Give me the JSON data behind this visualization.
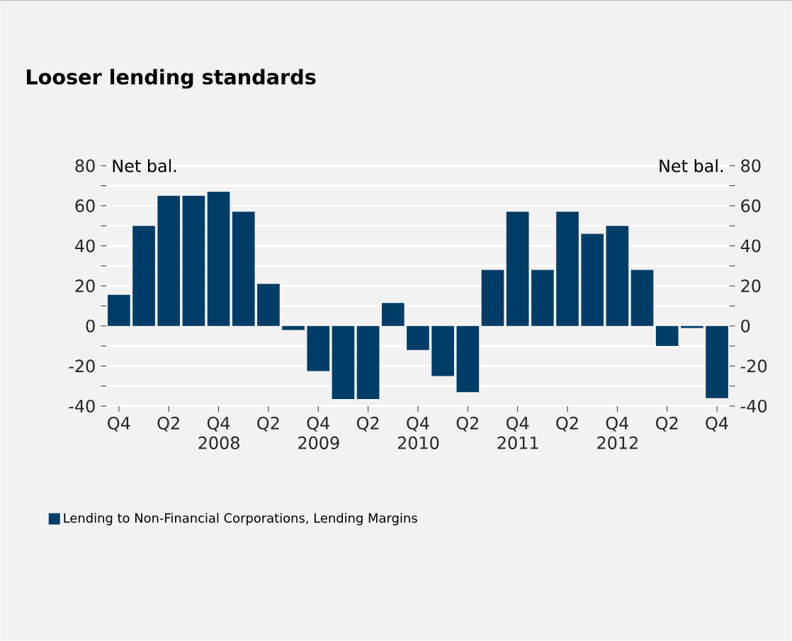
{
  "chart_data": {
    "type": "bar",
    "title": "Looser lending standards",
    "ylabel": "Net bal.",
    "y2label": "Net bal.",
    "categories": [
      "Q4",
      null,
      "Q2",
      null,
      "Q4 2008",
      null,
      "Q2",
      null,
      "Q4 2009",
      null,
      "Q2",
      null,
      "Q4 2010",
      null,
      "Q2",
      null,
      "Q4 2011",
      null,
      "Q2",
      null,
      "Q4 2012",
      null,
      "Q2",
      null,
      "Q4"
    ],
    "series": [
      {
        "name": "Lending to Non-Financial Corporations, Lending Margins",
        "color": "#003d66",
        "values": [
          15.5,
          50,
          65,
          65,
          67,
          57,
          21,
          -2,
          -22.5,
          -36.5,
          -36.5,
          11.5,
          -12,
          -25,
          -33,
          28,
          57,
          28,
          57,
          46,
          50,
          28,
          -10,
          -1,
          -36
        ]
      }
    ],
    "ylim": [
      -40,
      80
    ],
    "yticks": [
      -40,
      -20,
      0,
      20,
      40,
      60,
      80
    ],
    "y2lim": [
      -40,
      80
    ],
    "y2ticks": [
      -40,
      -20,
      0,
      20,
      40,
      60,
      80
    ],
    "grid": "y",
    "legend": "bottom"
  }
}
